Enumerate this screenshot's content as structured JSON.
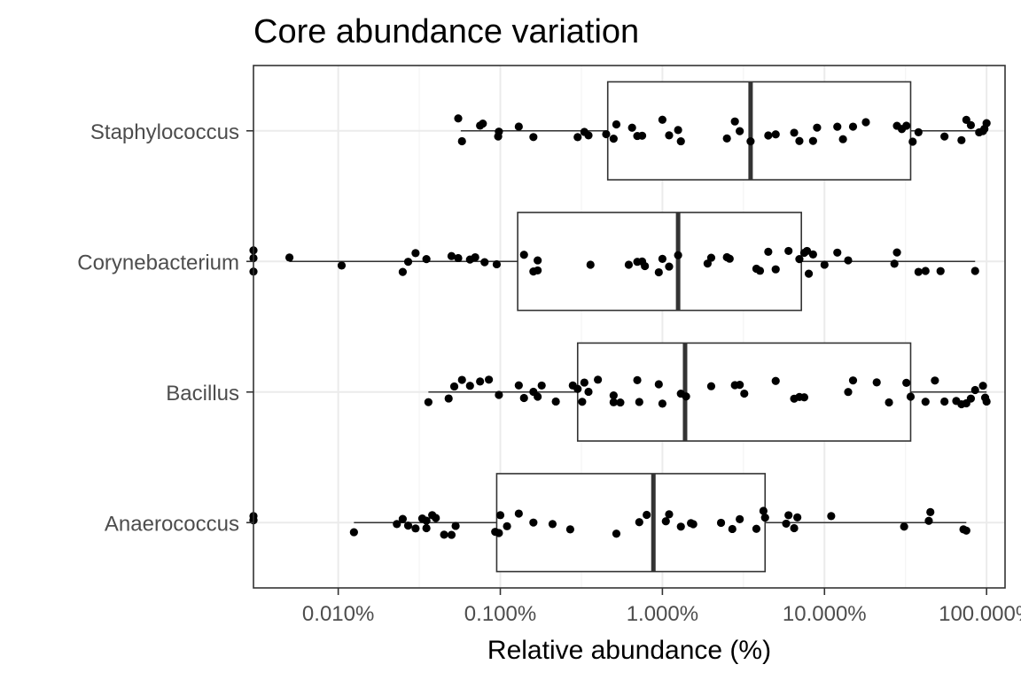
{
  "chart_data": {
    "type": "box",
    "title": "Core abundance variation",
    "xlabel": "Relative abundance (%)",
    "ylabel": "",
    "x_scale": "log10",
    "xlim": [
      0.003,
      130
    ],
    "x_ticks": [
      0.01,
      0.1,
      1,
      10,
      100
    ],
    "x_tick_labels": [
      "0.010%",
      "0.100%",
      "1.000%",
      "10.000%",
      "100.000%"
    ],
    "categories": [
      "Anaerococcus",
      "Bacillus",
      "Corynebacterium",
      "Staphylococcus"
    ],
    "grid": true,
    "legend": "none",
    "colors": {
      "points": "#000000",
      "box": "#333333",
      "grid": "#ebebeb",
      "panel_border": "#333333"
    },
    "boxes": [
      {
        "category": "Anaerococcus",
        "whisker_low": 0.0125,
        "q1": 0.095,
        "median": 0.88,
        "q3": 4.3,
        "whisker_high": 75
      },
      {
        "category": "Bacillus",
        "whisker_low": 0.036,
        "q1": 0.3,
        "median": 1.38,
        "q3": 34,
        "whisker_high": 100
      },
      {
        "category": "Corynebacterium",
        "whisker_low": 0.005,
        "q1": 0.128,
        "median": 1.25,
        "q3": 7.2,
        "whisker_high": 85
      },
      {
        "category": "Staphylococcus",
        "whisker_low": 0.057,
        "q1": 0.46,
        "median": 3.5,
        "q3": 34,
        "whisker_high": 95
      }
    ],
    "points": [
      {
        "category": "Staphylococcus",
        "values": [
          0.055,
          0.058,
          0.075,
          0.078,
          0.097,
          0.098,
          0.13,
          0.16,
          0.3,
          0.33,
          0.35,
          0.45,
          0.5,
          0.52,
          0.65,
          0.7,
          0.75,
          1.0,
          1.1,
          1.25,
          1.3,
          2.5,
          2.8,
          3.0,
          3.5,
          4.5,
          5.0,
          6.5,
          7.0,
          8.5,
          9.0,
          12,
          13,
          15,
          18,
          28,
          30,
          32,
          35,
          38,
          55,
          70,
          75,
          80,
          90,
          95,
          97,
          100
        ]
      },
      {
        "category": "Corynebacterium",
        "values": [
          0.003,
          0.003,
          0.003,
          0.005,
          0.0105,
          0.025,
          0.027,
          0.03,
          0.035,
          0.05,
          0.055,
          0.065,
          0.07,
          0.08,
          0.095,
          0.14,
          0.16,
          0.17,
          0.17,
          0.36,
          0.62,
          0.7,
          0.75,
          0.78,
          0.95,
          1.0,
          1.1,
          1.25,
          1.9,
          2.0,
          2.5,
          2.6,
          3.8,
          4.0,
          4.5,
          5.0,
          6.0,
          7.0,
          7.5,
          7.8,
          8.0,
          8.5,
          10,
          12,
          14,
          27,
          28,
          38,
          42,
          52,
          85
        ]
      },
      {
        "category": "Bacillus",
        "values": [
          0.036,
          0.048,
          0.052,
          0.058,
          0.065,
          0.075,
          0.085,
          0.098,
          0.13,
          0.14,
          0.16,
          0.17,
          0.18,
          0.22,
          0.28,
          0.3,
          0.32,
          0.33,
          0.35,
          0.4,
          0.5,
          0.5,
          0.55,
          0.7,
          0.72,
          0.95,
          1.0,
          1.3,
          1.4,
          2.0,
          2.8,
          3.0,
          3.2,
          5.0,
          6.5,
          7.0,
          7.5,
          14,
          15,
          21,
          25,
          32,
          34,
          42,
          48,
          55,
          65,
          70,
          75,
          80,
          85,
          95,
          98,
          100
        ]
      },
      {
        "category": "Anaerococcus",
        "values": [
          0.003,
          0.003,
          0.003,
          0.0125,
          0.023,
          0.025,
          0.027,
          0.03,
          0.033,
          0.035,
          0.035,
          0.038,
          0.04,
          0.045,
          0.05,
          0.053,
          0.093,
          0.098,
          0.1,
          0.11,
          0.13,
          0.16,
          0.21,
          0.27,
          0.52,
          0.72,
          0.8,
          1.05,
          1.1,
          1.3,
          1.5,
          1.55,
          2.3,
          2.7,
          3.0,
          3.8,
          4.2,
          4.3,
          5.8,
          6.0,
          6.5,
          6.8,
          11,
          31,
          44,
          45,
          72,
          75
        ]
      }
    ]
  }
}
